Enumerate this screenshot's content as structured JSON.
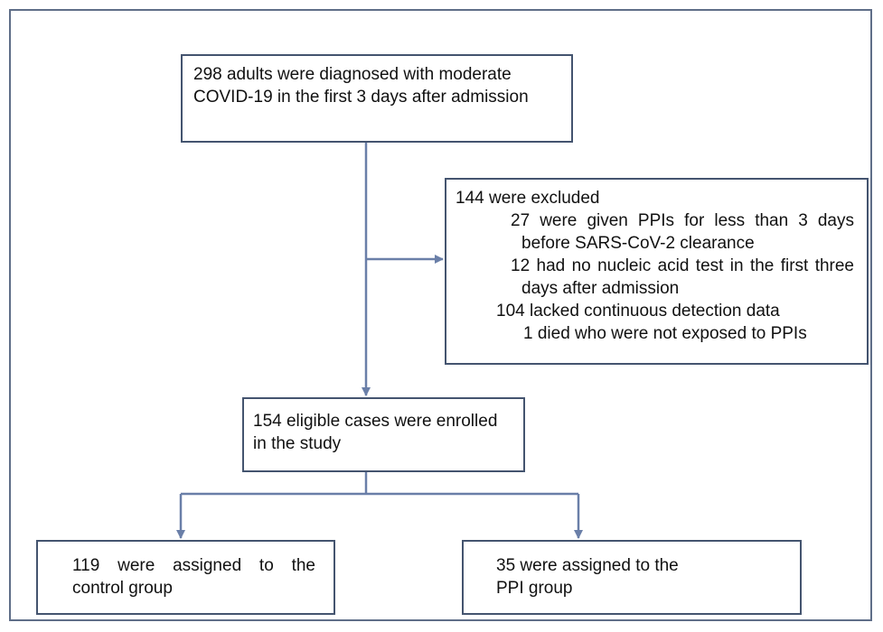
{
  "nodes": [
    {
      "label": "298 adults were diagnosed with moderate COVID-19 in the first 3 days after admission"
    },
    {
      "label": "144 were excluded",
      "items": [
        "27 were given PPIs for less than 3 days before SARS-CoV-2 clearance",
        "12 had no nucleic acid test in the first three days after admission",
        "104 lacked continuous detection data",
        "1 died who were not exposed to PPIs"
      ]
    },
    {
      "label": "154 eligible cases were enrolled in the study"
    },
    {
      "label": "119 were assigned to the control group"
    },
    {
      "label": "35 were assigned to the PPI group"
    }
  ]
}
